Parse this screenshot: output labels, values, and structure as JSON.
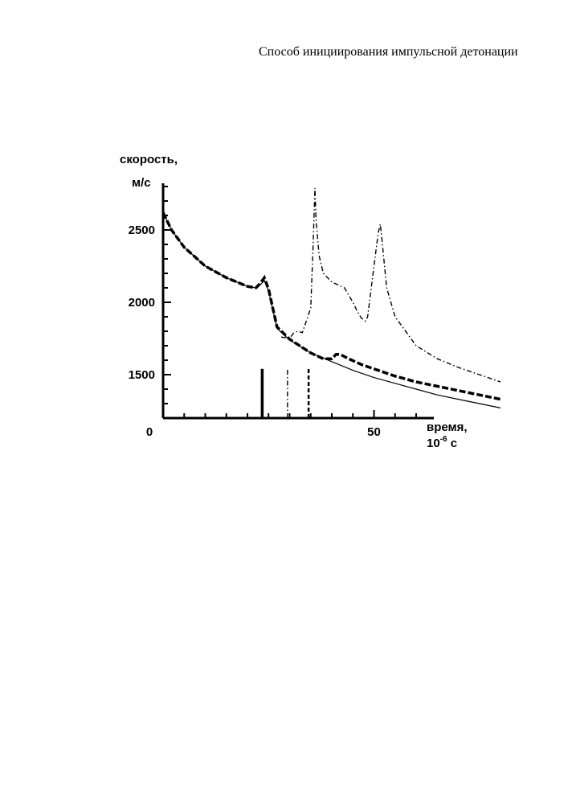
{
  "document": {
    "title": "Способ инициирования импульсной детонации"
  },
  "chart_data": {
    "type": "line",
    "ylabel_line1": "скорость,",
    "ylabel_line2": "м/с",
    "xlabel_line1": "время,",
    "xlabel_base": "10",
    "xlabel_exp": "-6",
    "xlabel_unit": " с",
    "x_ticks": [
      {
        "v": 0,
        "label": "0"
      },
      {
        "v": 50,
        "label": "50"
      }
    ],
    "y_ticks": [
      {
        "v": 1500,
        "label": "1500"
      },
      {
        "v": 2000,
        "label": "2000"
      },
      {
        "v": 2500,
        "label": "2500"
      }
    ],
    "xlim": [
      0,
      80
    ],
    "ylim": [
      1200,
      2900
    ],
    "x_minor_step": 5,
    "y_minor_step": 100,
    "colors": {
      "ink": "#000000"
    },
    "series": [
      {
        "style": "solid-thin",
        "x": [
          0,
          2,
          5,
          10,
          15,
          20,
          22,
          23,
          24,
          25,
          27,
          30,
          35,
          40,
          45,
          50,
          55,
          60,
          65,
          70,
          75,
          80
        ],
        "y": [
          2620,
          2500,
          2380,
          2250,
          2170,
          2110,
          2100,
          2120,
          2150,
          2080,
          1820,
          1740,
          1650,
          1590,
          1530,
          1480,
          1440,
          1400,
          1360,
          1330,
          1300,
          1270
        ]
      },
      {
        "style": "dashed-bold",
        "x": [
          0,
          2,
          5,
          10,
          15,
          20,
          22,
          23,
          24,
          25,
          27,
          30,
          35,
          38,
          40,
          41,
          42,
          44,
          47,
          50,
          55,
          60,
          65,
          70,
          75,
          80
        ],
        "y": [
          2620,
          2500,
          2380,
          2250,
          2170,
          2110,
          2100,
          2130,
          2170,
          2090,
          1830,
          1745,
          1650,
          1610,
          1610,
          1640,
          1640,
          1610,
          1570,
          1540,
          1490,
          1450,
          1420,
          1390,
          1360,
          1330
        ]
      },
      {
        "style": "dashdot",
        "x": [
          28,
          30,
          31,
          32,
          33,
          35,
          35.6,
          36,
          36.3,
          37,
          38,
          40,
          43,
          45,
          46,
          47,
          48,
          48.5,
          50,
          51,
          51.5,
          52,
          53,
          55,
          60,
          65,
          70,
          75,
          80
        ],
        "y": [
          1760,
          1750,
          1790,
          1800,
          1790,
          1960,
          2420,
          2790,
          2550,
          2320,
          2200,
          2140,
          2100,
          2000,
          1940,
          1890,
          1870,
          1900,
          2250,
          2480,
          2540,
          2400,
          2100,
          1900,
          1700,
          1610,
          1550,
          1500,
          1450
        ]
      }
    ],
    "markers": [
      {
        "x": 23.5,
        "style": "solid-bold"
      },
      {
        "x": 29.5,
        "style": "dashdot"
      },
      {
        "x": 34.5,
        "style": "dashed"
      }
    ],
    "marker_top_value": 1540
  }
}
